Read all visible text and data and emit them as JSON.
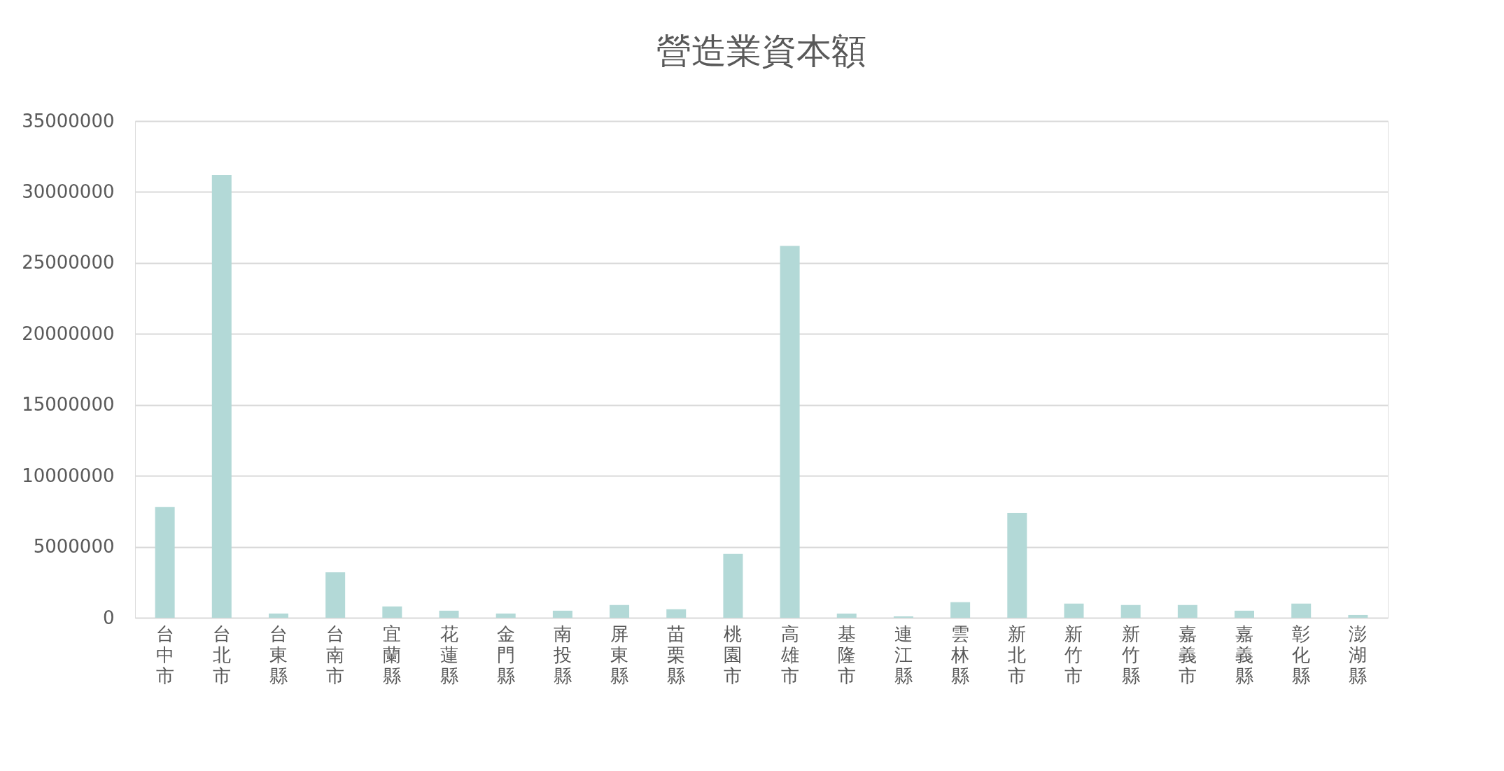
{
  "chart_data": {
    "type": "bar",
    "title": "營造業資本額",
    "categories": [
      "台中市",
      "台北市",
      "台東縣",
      "台南市",
      "宜蘭縣",
      "花蓮縣",
      "金門縣",
      "南投縣",
      "屏東縣",
      "苗栗縣",
      "桃園市",
      "高雄市",
      "基隆市",
      "連江縣",
      "雲林縣",
      "新北市",
      "新竹市",
      "新竹縣",
      "嘉義市",
      "嘉義縣",
      "彰化縣",
      "澎湖縣"
    ],
    "values": [
      7800000,
      31200000,
      300000,
      3200000,
      800000,
      500000,
      300000,
      500000,
      900000,
      600000,
      4500000,
      26200000,
      300000,
      100000,
      1100000,
      7400000,
      1000000,
      900000,
      900000,
      500000,
      1000000,
      200000
    ],
    "color": "#b3d9d7",
    "ylim": [
      0,
      35000000
    ],
    "yticks": [
      0,
      5000000,
      10000000,
      15000000,
      20000000,
      25000000,
      30000000,
      35000000
    ],
    "grid": "y"
  }
}
